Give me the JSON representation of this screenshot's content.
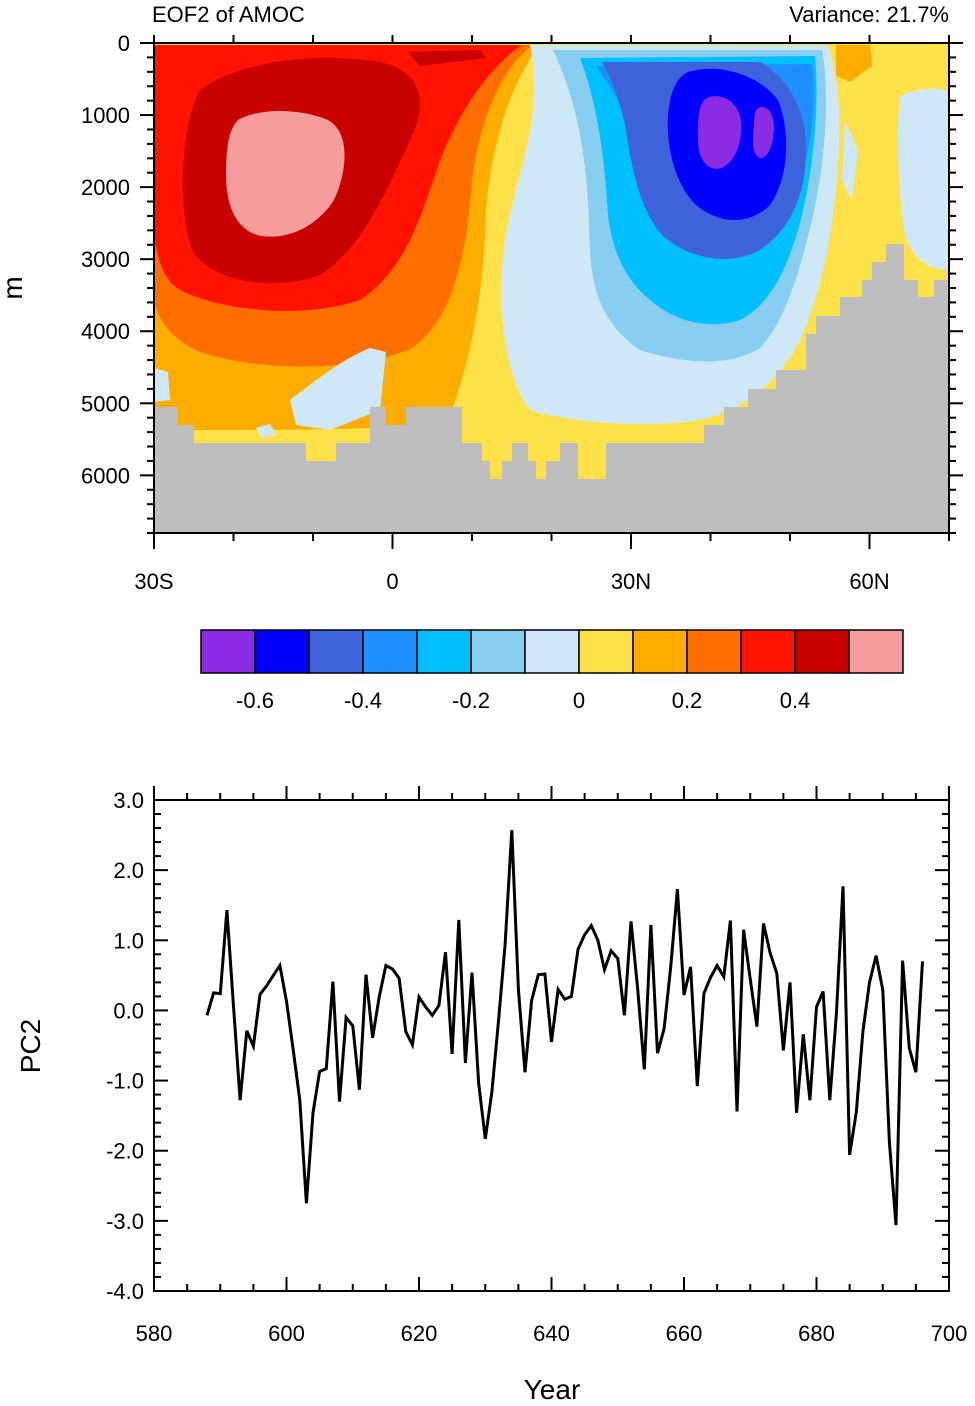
{
  "chart_data": [
    {
      "type": "heatmap",
      "title": "EOF2 of AMOC",
      "subtitle": "Variance: 21.7%",
      "xlabel": "",
      "ylabel": "m",
      "x_range": [
        -30,
        70
      ],
      "y_range": [
        0,
        6800
      ],
      "y_reversed": true,
      "x_ticks": [
        {
          "value": -30,
          "label": "30S"
        },
        {
          "value": 0,
          "label": "0"
        },
        {
          "value": 30,
          "label": "30N"
        },
        {
          "value": 60,
          "label": "60N"
        }
      ],
      "y_ticks": [
        {
          "value": 0,
          "label": "0"
        },
        {
          "value": 1000,
          "label": "1000"
        },
        {
          "value": 2000,
          "label": "2000"
        },
        {
          "value": 3000,
          "label": "3000"
        },
        {
          "value": 4000,
          "label": "4000"
        },
        {
          "value": 5000,
          "label": "5000"
        },
        {
          "value": 6000,
          "label": "6000"
        }
      ],
      "colorbar": {
        "levels": [
          -0.7,
          -0.6,
          -0.5,
          -0.4,
          -0.3,
          -0.2,
          -0.1,
          0,
          0.1,
          0.2,
          0.3,
          0.4,
          0.5,
          0.6
        ],
        "colors": [
          "#8b2be2",
          "#0000ff",
          "#3d62d9",
          "#1e8fff",
          "#00bfff",
          "#87cef0",
          "#cfe8f7",
          "#ffe14a",
          "#ffad00",
          "#ff6f00",
          "#ff1200",
          "#c90000",
          "#f59c9c"
        ],
        "labels": [
          {
            "value": -0.6,
            "label": "-0.6"
          },
          {
            "value": -0.4,
            "label": "-0.4"
          },
          {
            "value": -0.2,
            "label": "-0.2"
          },
          {
            "value": 0,
            "label": "0"
          },
          {
            "value": 0.2,
            "label": "0.2"
          },
          {
            "value": 0.4,
            "label": "0.4"
          }
        ]
      },
      "features": [
        {
          "name": "southern positive cell",
          "lat_center": -18,
          "depth_center": 1800,
          "peak_value": 0.5
        },
        {
          "name": "northern negative cell",
          "lat_center": 41,
          "depth_center": 1300,
          "peak_value": -0.65
        },
        {
          "name": "bottom topography",
          "fill": "#bebebe"
        }
      ]
    },
    {
      "type": "line",
      "title": "",
      "xlabel": "Year",
      "ylabel": "PC2",
      "xlim": [
        580,
        700
      ],
      "ylim": [
        -4,
        3
      ],
      "x_ticks": [
        580,
        600,
        620,
        640,
        660,
        680,
        700
      ],
      "y_ticks": [
        {
          "value": 3,
          "label": "3.0"
        },
        {
          "value": 2,
          "label": "2.0"
        },
        {
          "value": 1,
          "label": "1.0"
        },
        {
          "value": 0,
          "label": "0.0"
        },
        {
          "value": -1,
          "label": "-1.0"
        },
        {
          "value": -2,
          "label": "-2.0"
        },
        {
          "value": -3,
          "label": "-3.0"
        },
        {
          "value": -4,
          "label": "-4.0"
        }
      ],
      "series": [
        {
          "name": "PC2",
          "x_start": 588,
          "x_step": 1,
          "values": [
            -0.07,
            0.25,
            0.24,
            1.43,
            0.06,
            -1.28,
            -0.29,
            -0.51,
            0.23,
            0.35,
            0.5,
            0.64,
            0.13,
            -0.55,
            -1.28,
            -2.75,
            -1.46,
            -0.87,
            -0.83,
            0.41,
            -1.3,
            -0.1,
            -0.22,
            -1.13,
            0.51,
            -0.39,
            0.2,
            0.64,
            0.59,
            0.46,
            -0.3,
            -0.49,
            0.19,
            0.05,
            -0.07,
            0.07,
            0.83,
            -0.62,
            1.29,
            -0.75,
            0.54,
            -1.03,
            -1.83,
            -1.16,
            -0.15,
            0.94,
            2.57,
            0.3,
            -0.88,
            0.14,
            0.51,
            0.52,
            -0.45,
            0.3,
            0.16,
            0.2,
            0.87,
            1.08,
            1.21,
            1.0,
            0.58,
            0.85,
            0.74,
            -0.07,
            1.27,
            0.32,
            -0.84,
            1.22,
            -0.61,
            -0.26,
            0.63,
            1.73,
            0.22,
            0.62,
            -1.08,
            0.24,
            0.47,
            0.64,
            0.48,
            1.28,
            -1.44,
            1.15,
            0.44,
            -0.23,
            1.24,
            0.82,
            0.53,
            -0.57,
            0.4,
            -1.46,
            -0.34,
            -1.28,
            0.05,
            0.27,
            -1.28,
            -0.05,
            1.77,
            -2.06,
            -1.45,
            -0.3,
            0.4,
            0.78,
            0.29,
            -1.88,
            -3.06,
            0.71,
            -0.54,
            -0.88,
            0.7
          ]
        }
      ]
    }
  ]
}
